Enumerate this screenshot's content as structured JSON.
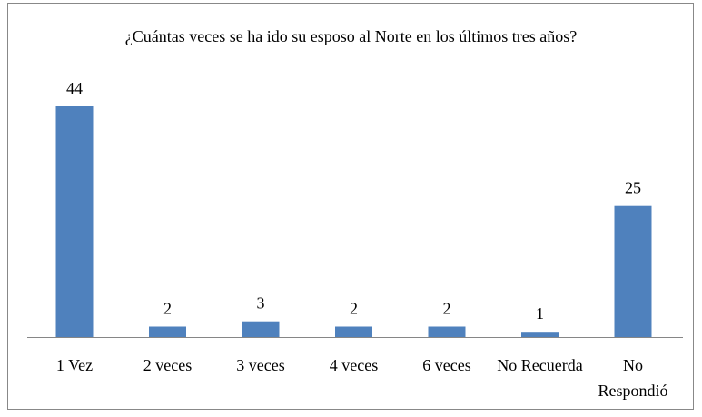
{
  "chart_data": {
    "type": "bar",
    "title": "¿Cuántas veces se ha ido su esposo al Norte en los últimos tres años?",
    "xlabel": "",
    "ylabel": "",
    "categories": [
      [
        "1 Vez"
      ],
      [
        "2 veces"
      ],
      [
        "3 veces"
      ],
      [
        "4 veces"
      ],
      [
        "6 veces"
      ],
      [
        "No Recuerda"
      ],
      [
        "No",
        "Respondió"
      ]
    ],
    "values": [
      44,
      2,
      3,
      2,
      2,
      1,
      25
    ],
    "ylim": [
      0,
      44
    ],
    "grid": false,
    "legend": "none",
    "bar_color": "#4F81BD"
  }
}
